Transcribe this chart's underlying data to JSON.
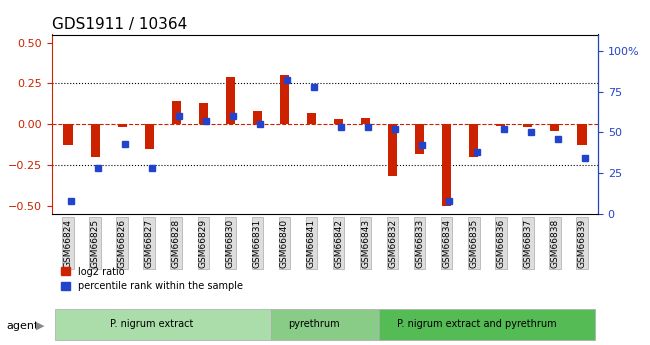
{
  "title": "GDS1911 / 10364",
  "samples": [
    "GSM66824",
    "GSM66825",
    "GSM66826",
    "GSM66827",
    "GSM66828",
    "GSM66829",
    "GSM66830",
    "GSM66831",
    "GSM66840",
    "GSM66841",
    "GSM66842",
    "GSM66843",
    "GSM66832",
    "GSM66833",
    "GSM66834",
    "GSM66835",
    "GSM66836",
    "GSM66837",
    "GSM66838",
    "GSM66839"
  ],
  "log2_ratio": [
    -0.13,
    -0.2,
    -0.02,
    -0.15,
    0.14,
    0.13,
    0.29,
    0.08,
    0.3,
    0.07,
    0.03,
    0.04,
    -0.32,
    -0.18,
    -0.5,
    -0.2,
    -0.01,
    -0.02,
    -0.04,
    -0.13
  ],
  "percentile": [
    8,
    28,
    43,
    28,
    60,
    57,
    60,
    55,
    82,
    78,
    53,
    53,
    52,
    42,
    8,
    38,
    52,
    50,
    46,
    34
  ],
  "groups": [
    {
      "label": "P. nigrum extract",
      "start": 0,
      "end": 8,
      "color": "#aaddaa"
    },
    {
      "label": "pyrethrum",
      "start": 8,
      "end": 12,
      "color": "#88cc88"
    },
    {
      "label": "P. nigrum extract and pyrethrum",
      "start": 12,
      "end": 20,
      "color": "#55bb55"
    }
  ],
  "bar_color_red": "#cc2200",
  "bar_color_blue": "#2244cc",
  "ylim_left": [
    -0.55,
    0.55
  ],
  "ylim_right": [
    0,
    110
  ],
  "yticks_left": [
    -0.5,
    -0.25,
    0,
    0.25,
    0.5
  ],
  "yticks_right": [
    0,
    25,
    50,
    75,
    100
  ],
  "hline_dashed_red": 0.0,
  "hline_dotted_vals": [
    -0.25,
    0.25
  ],
  "legend_items": [
    "log2 ratio",
    "percentile rank within the sample"
  ],
  "agent_label": "agent"
}
